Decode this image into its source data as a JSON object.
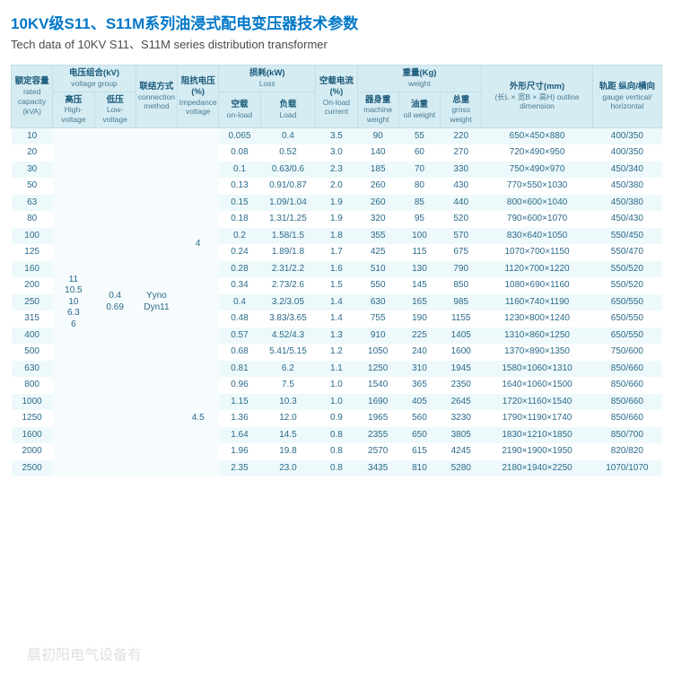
{
  "title_cn": "10KV级S11、S11M系列油浸式配电变压器技术参数",
  "title_en": "Tech data of 10KV S11、S11M series distribution transformer",
  "watermark": "晨初阳电气设备有",
  "header": {
    "rated_capacity_cn": "额定容量",
    "rated_capacity_en": "rated capacity (kVA)",
    "voltage_group_cn": "电压组合(kV)",
    "voltage_group_en": "voltage group",
    "high_voltage_cn": "高压",
    "high_voltage_en": "High-voltage",
    "low_voltage_cn": "低压",
    "low_voltage_en": "Low-voltage",
    "connection_cn": "联结方式",
    "connection_en": "connection method",
    "impedance_cn": "阻抗电压(%)",
    "impedance_en": "Impedance voltage",
    "loss_cn": "损耗(kW)",
    "loss_en": "Loss",
    "onload_cn": "空载",
    "onload_en": "on-load",
    "load_cn": "负载",
    "load_en": "Load",
    "onload_current_cn": "空载电流(%)",
    "onload_current_en": "On-load current",
    "weight_cn": "重量(Kg)",
    "weight_en": "weight",
    "machine_cn": "器身重",
    "machine_en": "machine weight",
    "oil_cn": "油重",
    "oil_en": "oil weight",
    "gross_cn": "总重",
    "gross_en": "gross weight",
    "outline_cn": "外形尺寸(mm)",
    "outline_en": "(长L × 宽B × 高H) outline dimension",
    "gauge_cn": "轨距 纵向/横向",
    "gauge_en": "gauge vertical/ horizontal"
  },
  "merged": {
    "high_voltage": "11\n10.5\n10\n6.3\n6",
    "low_voltage": "0.4\n0.69",
    "connection": "Yyno\nDyn11",
    "impedance_top": "4",
    "impedance_bot": "4.5"
  },
  "rows": [
    {
      "cap": "10",
      "ol": "0.065",
      "ld": "0.4",
      "cur": "3.5",
      "mw": "90",
      "ow": "55",
      "gw": "220",
      "dim": "650×450×880",
      "gauge": "400/350"
    },
    {
      "cap": "20",
      "ol": "0.08",
      "ld": "0.52",
      "cur": "3.0",
      "mw": "140",
      "ow": "60",
      "gw": "270",
      "dim": "720×490×950",
      "gauge": "400/350"
    },
    {
      "cap": "30",
      "ol": "0.1",
      "ld": "0.63/0.6",
      "cur": "2.3",
      "mw": "185",
      "ow": "70",
      "gw": "330",
      "dim": "750×490×970",
      "gauge": "450/340"
    },
    {
      "cap": "50",
      "ol": "0.13",
      "ld": "0.91/0.87",
      "cur": "2.0",
      "mw": "260",
      "ow": "80",
      "gw": "430",
      "dim": "770×550×1030",
      "gauge": "450/380"
    },
    {
      "cap": "63",
      "ol": "0.15",
      "ld": "1.09/1.04",
      "cur": "1.9",
      "mw": "260",
      "ow": "85",
      "gw": "440",
      "dim": "800×600×1040",
      "gauge": "450/380"
    },
    {
      "cap": "80",
      "ol": "0.18",
      "ld": "1.31/1.25",
      "cur": "1.9",
      "mw": "320",
      "ow": "95",
      "gw": "520",
      "dim": "790×600×1070",
      "gauge": "450/430"
    },
    {
      "cap": "100",
      "ol": "0.2",
      "ld": "1.58/1.5",
      "cur": "1.8",
      "mw": "355",
      "ow": "100",
      "gw": "570",
      "dim": "830×640×1050",
      "gauge": "550/450"
    },
    {
      "cap": "125",
      "ol": "0.24",
      "ld": "1.89/1.8",
      "cur": "1.7",
      "mw": "425",
      "ow": "115",
      "gw": "675",
      "dim": "1070×700×1150",
      "gauge": "550/470"
    },
    {
      "cap": "160",
      "ol": "0.28",
      "ld": "2.31/2.2",
      "cur": "1.6",
      "mw": "510",
      "ow": "130",
      "gw": "790",
      "dim": "1120×700×1220",
      "gauge": "550/520"
    },
    {
      "cap": "200",
      "ol": "0.34",
      "ld": "2.73/2.6",
      "cur": "1.5",
      "mw": "550",
      "ow": "145",
      "gw": "850",
      "dim": "1080×690×1160",
      "gauge": "550/520"
    },
    {
      "cap": "250",
      "ol": "0.4",
      "ld": "3.2/3.05",
      "cur": "1.4",
      "mw": "630",
      "ow": "165",
      "gw": "985",
      "dim": "1160×740×1190",
      "gauge": "650/550"
    },
    {
      "cap": "315",
      "ol": "0.48",
      "ld": "3.83/3.65",
      "cur": "1.4",
      "mw": "755",
      "ow": "190",
      "gw": "1155",
      "dim": "1230×800×1240",
      "gauge": "650/550"
    },
    {
      "cap": "400",
      "ol": "0.57",
      "ld": "4.52/4.3",
      "cur": "1.3",
      "mw": "910",
      "ow": "225",
      "gw": "1405",
      "dim": "1310×860×1250",
      "gauge": "650/550"
    },
    {
      "cap": "500",
      "ol": "0.68",
      "ld": "5.41/5.15",
      "cur": "1.2",
      "mw": "1050",
      "ow": "240",
      "gw": "1600",
      "dim": "1370×890×1350",
      "gauge": "750/600"
    },
    {
      "cap": "630",
      "ol": "0.81",
      "ld": "6.2",
      "cur": "1.1",
      "mw": "1250",
      "ow": "310",
      "gw": "1945",
      "dim": "1580×1060×1310",
      "gauge": "850/660"
    },
    {
      "cap": "800",
      "ol": "0.96",
      "ld": "7.5",
      "cur": "1.0",
      "mw": "1540",
      "ow": "365",
      "gw": "2350",
      "dim": "1640×1060×1500",
      "gauge": "850/660"
    },
    {
      "cap": "1000",
      "ol": "1.15",
      "ld": "10.3",
      "cur": "1.0",
      "mw": "1690",
      "ow": "405",
      "gw": "2645",
      "dim": "1720×1160×1540",
      "gauge": "850/660"
    },
    {
      "cap": "1250",
      "ol": "1.36",
      "ld": "12.0",
      "cur": "0.9",
      "mw": "1965",
      "ow": "560",
      "gw": "3230",
      "dim": "1790×1190×1740",
      "gauge": "850/660"
    },
    {
      "cap": "1600",
      "ol": "1.64",
      "ld": "14.5",
      "cur": "0.8",
      "mw": "2355",
      "ow": "650",
      "gw": "3805",
      "dim": "1830×1210×1850",
      "gauge": "850/700"
    },
    {
      "cap": "2000",
      "ol": "1.96",
      "ld": "19.8",
      "cur": "0.8",
      "mw": "2570",
      "ow": "615",
      "gw": "4245",
      "dim": "2190×1900×1950",
      "gauge": "820/820"
    },
    {
      "cap": "2500",
      "ol": "2.35",
      "ld": "23.0",
      "cur": "0.8",
      "mw": "3435",
      "ow": "810",
      "gw": "5280",
      "dim": "2180×1940×2250",
      "gauge": "1070/1070"
    }
  ],
  "colwidths": [
    "6%",
    "6%",
    "6%",
    "6%",
    "6%",
    "6%",
    "8%",
    "6%",
    "6%",
    "6%",
    "6%",
    "16%",
    "10%"
  ],
  "colors": {
    "title": "#0077c8",
    "header_bg": "#d6ecf3",
    "header_text": "#1a5a7a",
    "row_odd": "#eef9fb",
    "row_even": "#ffffff",
    "cell_text": "#2a6a8a"
  }
}
